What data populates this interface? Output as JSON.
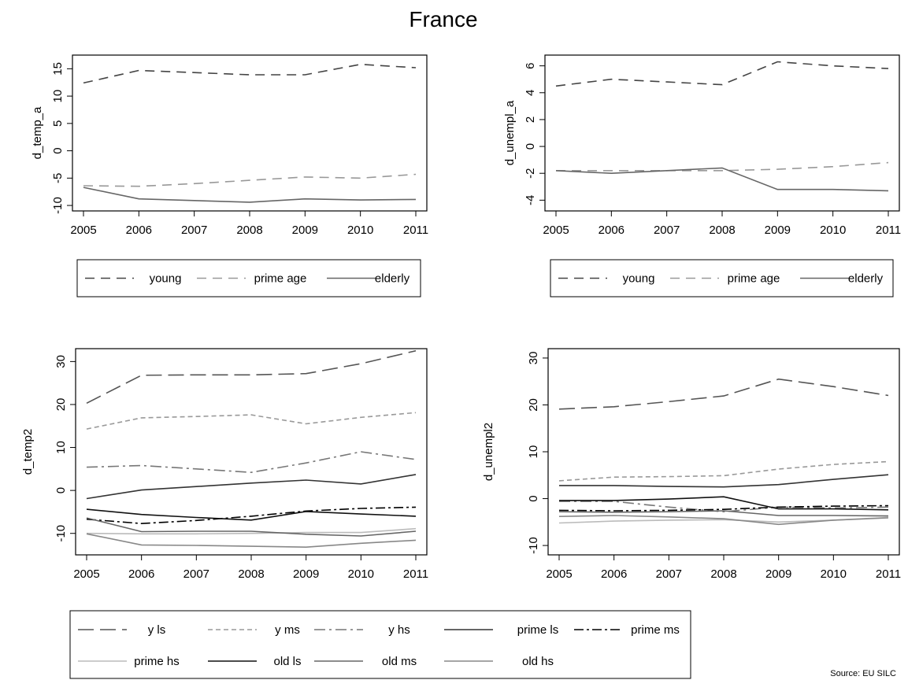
{
  "figure": {
    "title": "France",
    "source": "Source: EU SILC"
  },
  "chart_data": [
    {
      "type": "line",
      "ylabel": "d_temp_a",
      "x": [
        2005,
        2006,
        2007,
        2008,
        2009,
        2010,
        2011
      ],
      "xticks": [
        2005,
        2006,
        2007,
        2008,
        2009,
        2010,
        2011
      ],
      "yticks": [
        -10,
        -5,
        0,
        5,
        10,
        15
      ],
      "ylim": [
        -11,
        17.5
      ],
      "legend": "below",
      "series": [
        {
          "name": "young",
          "values": [
            12.4,
            14.7,
            14.3,
            13.9,
            13.9,
            15.8,
            15.2
          ]
        },
        {
          "name": "prime age",
          "values": [
            -6.4,
            -6.5,
            -6.0,
            -5.4,
            -4.8,
            -5.0,
            -4.3
          ]
        },
        {
          "name": "elderly",
          "values": [
            -6.7,
            -8.8,
            -9.1,
            -9.4,
            -8.8,
            -9.0,
            -8.9
          ]
        }
      ]
    },
    {
      "type": "line",
      "ylabel": "d_unempl_a",
      "x": [
        2005,
        2006,
        2007,
        2008,
        2009,
        2010,
        2011
      ],
      "xticks": [
        2005,
        2006,
        2007,
        2008,
        2009,
        2010,
        2011
      ],
      "yticks": [
        -4,
        -2,
        0,
        2,
        4,
        6
      ],
      "ylim": [
        -4.8,
        6.8
      ],
      "legend": "below",
      "series": [
        {
          "name": "young",
          "values": [
            4.5,
            5.0,
            4.8,
            4.6,
            6.3,
            6.0,
            5.8
          ]
        },
        {
          "name": "prime age",
          "values": [
            -1.8,
            -1.8,
            -1.8,
            -1.8,
            -1.7,
            -1.5,
            -1.2
          ]
        },
        {
          "name": "elderly",
          "values": [
            -1.8,
            -2.0,
            -1.8,
            -1.6,
            -3.2,
            -3.2,
            -3.3
          ]
        }
      ]
    },
    {
      "type": "line",
      "ylabel": "d_temp2",
      "x": [
        2005,
        2006,
        2007,
        2008,
        2009,
        2010,
        2011
      ],
      "xticks": [
        2005,
        2006,
        2007,
        2008,
        2009,
        2010,
        2011
      ],
      "yticks": [
        -10,
        0,
        10,
        20,
        30
      ],
      "ylim": [
        -15,
        33
      ],
      "legend": "below",
      "series": [
        {
          "name": "y ls",
          "values": [
            20.3,
            26.8,
            26.9,
            26.9,
            27.2,
            29.5,
            32.5
          ]
        },
        {
          "name": "y ms",
          "values": [
            14.3,
            16.9,
            17.2,
            17.6,
            15.5,
            17.0,
            18.1
          ]
        },
        {
          "name": "y hs",
          "values": [
            5.4,
            5.8,
            5.0,
            4.2,
            6.4,
            9.0,
            7.2
          ]
        },
        {
          "name": "prime ls",
          "values": [
            -1.9,
            0.1,
            0.9,
            1.7,
            2.4,
            1.5,
            3.7
          ]
        },
        {
          "name": "prime ms",
          "values": [
            -6.7,
            -7.7,
            -7.0,
            -6.0,
            -4.8,
            -4.2,
            -3.9
          ]
        },
        {
          "name": "prime hs",
          "values": [
            -10.0,
            -10.1,
            -10.1,
            -10.0,
            -9.8,
            -9.8,
            -8.9
          ]
        },
        {
          "name": "old ls",
          "values": [
            -4.4,
            -5.6,
            -6.3,
            -6.9,
            -4.9,
            -5.5,
            -6.0
          ]
        },
        {
          "name": "old ms",
          "values": [
            -6.4,
            -9.6,
            -9.5,
            -9.5,
            -10.2,
            -10.6,
            -9.5
          ]
        },
        {
          "name": "old hs",
          "values": [
            -10.1,
            -12.7,
            -12.8,
            -13.0,
            -13.2,
            -12.3,
            -11.6
          ]
        }
      ]
    },
    {
      "type": "line",
      "ylabel": "d_unempl2",
      "x": [
        2005,
        2006,
        2007,
        2008,
        2009,
        2010,
        2011
      ],
      "xticks": [
        2005,
        2006,
        2007,
        2008,
        2009,
        2010,
        2011
      ],
      "yticks": [
        -10,
        0,
        10,
        20,
        30
      ],
      "ylim": [
        -12,
        32
      ],
      "legend": "below",
      "series": [
        {
          "name": "y ls",
          "values": [
            19.1,
            19.6,
            20.7,
            21.9,
            25.5,
            23.9,
            22.0
          ]
        },
        {
          "name": "y ms",
          "values": [
            3.8,
            4.6,
            4.7,
            4.9,
            6.3,
            7.3,
            7.9
          ]
        },
        {
          "name": "y hs",
          "values": [
            -0.6,
            -0.6,
            -1.8,
            -2.8,
            -1.8,
            -2.0,
            -1.8
          ]
        },
        {
          "name": "prime ls",
          "values": [
            2.8,
            2.8,
            2.6,
            2.5,
            3.0,
            4.1,
            5.1
          ]
        },
        {
          "name": "prime ms",
          "values": [
            -2.5,
            -2.6,
            -2.5,
            -2.3,
            -1.8,
            -1.6,
            -1.5
          ]
        },
        {
          "name": "prime hs",
          "values": [
            -5.2,
            -4.8,
            -4.6,
            -4.5,
            -5.0,
            -4.6,
            -4.0
          ]
        },
        {
          "name": "old ls",
          "values": [
            -0.4,
            -0.4,
            -0.1,
            0.4,
            -2.2,
            -2.2,
            -2.4
          ]
        },
        {
          "name": "old ms",
          "values": [
            -2.8,
            -2.9,
            -2.8,
            -2.6,
            -3.6,
            -3.6,
            -3.7
          ]
        },
        {
          "name": "old hs",
          "values": [
            -3.8,
            -3.6,
            -3.9,
            -4.3,
            -5.5,
            -4.6,
            -4.1
          ]
        }
      ]
    }
  ],
  "legends": {
    "top": [
      {
        "label": "young",
        "color": "#444444",
        "dash": "12 8"
      },
      {
        "label": "prime age",
        "color": "#999999",
        "dash": "12 8"
      },
      {
        "label": "elderly",
        "color": "#666666",
        "dash": ""
      }
    ],
    "bottom": [
      {
        "label": "y ls",
        "color": "#555555",
        "dash": "20 8"
      },
      {
        "label": "y ms",
        "color": "#999999",
        "dash": "6 4"
      },
      {
        "label": "y hs",
        "color": "#777777",
        "dash": "14 5 3 5"
      },
      {
        "label": "prime ls",
        "color": "#333333",
        "dash": ""
      },
      {
        "label": "prime ms",
        "color": "#000000",
        "dash": "12 4 3 4"
      },
      {
        "label": "prime hs",
        "color": "#bbbbbb",
        "dash": ""
      },
      {
        "label": "old ls",
        "color": "#111111",
        "dash": ""
      },
      {
        "label": "old ms",
        "color": "#666666",
        "dash": ""
      },
      {
        "label": "old hs",
        "color": "#888888",
        "dash": ""
      }
    ]
  }
}
